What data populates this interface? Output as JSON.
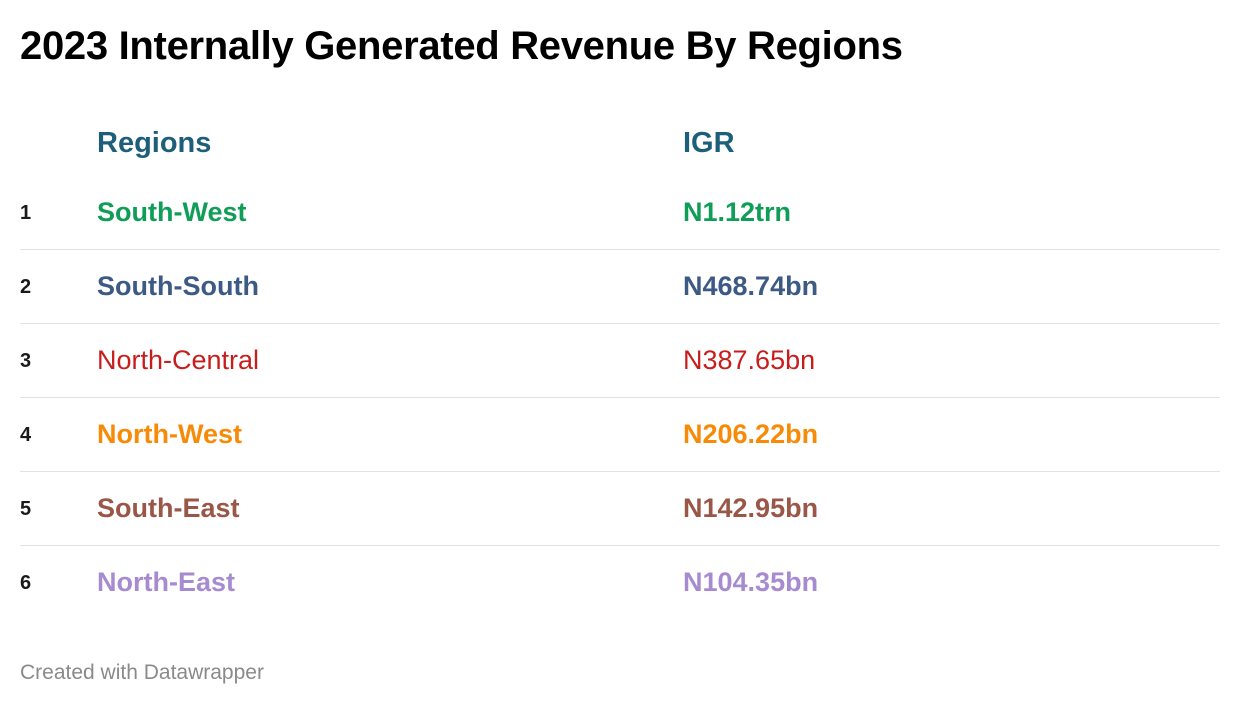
{
  "chart_data": {
    "type": "table",
    "title": "2023 Internally Generated Revenue By Regions",
    "columns": [
      "Regions",
      "IGR"
    ],
    "rows": [
      {
        "rank": "1",
        "region": "South-West",
        "igr": "N1.12trn",
        "value_bn": 1120,
        "color": "#0f9d58",
        "weight": "bold"
      },
      {
        "rank": "2",
        "region": "South-South",
        "igr": "N468.74bn",
        "value_bn": 468.74,
        "color": "#3c5a84",
        "weight": "bold"
      },
      {
        "rank": "3",
        "region": "North-Central",
        "igr": "N387.65bn",
        "value_bn": 387.65,
        "color": "#c71e1d",
        "weight": "normal"
      },
      {
        "rank": "4",
        "region": "North-West",
        "igr": "N206.22bn",
        "value_bn": 206.22,
        "color": "#f78b07",
        "weight": "bold"
      },
      {
        "rank": "5",
        "region": "South-East",
        "igr": "N142.95bn",
        "value_bn": 142.95,
        "color": "#9a5748",
        "weight": "bold"
      },
      {
        "rank": "6",
        "region": "North-East",
        "igr": "N104.35bn",
        "value_bn": 104.35,
        "color": "#a78bd0",
        "weight": "bold"
      }
    ],
    "footer": "Created with Datawrapper"
  }
}
